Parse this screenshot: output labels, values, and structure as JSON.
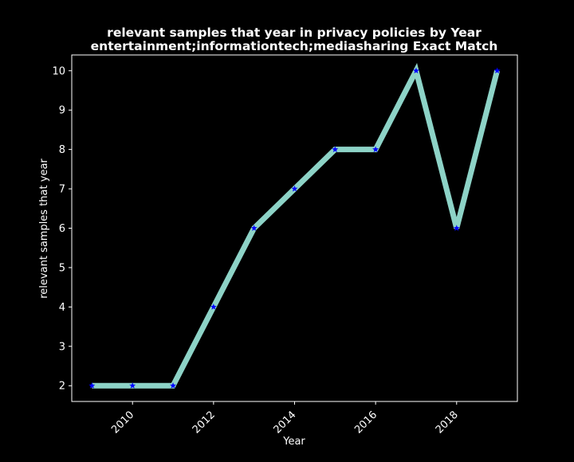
{
  "chart_data": {
    "type": "line",
    "title_line1": "relevant samples that year in privacy policies by Year",
    "title_line2": "entertainment;informationtech;mediasharing Exact Match",
    "xlabel": "Year",
    "ylabel": "relevant samples that year",
    "x": [
      2009,
      2010,
      2011,
      2012,
      2013,
      2014,
      2015,
      2016,
      2017,
      2018,
      2019
    ],
    "series": [
      {
        "values": [
          2,
          2,
          2,
          4,
          6,
          7,
          8,
          8,
          10,
          6,
          10
        ],
        "line_color": "#8dd3c7",
        "marker_color": "#0000ff",
        "marker": "star"
      }
    ],
    "xlim": [
      2008.5,
      2019.5
    ],
    "ylim": [
      1.6,
      10.4
    ],
    "xticks": [
      2010,
      2012,
      2014,
      2016,
      2018
    ],
    "yticks": [
      2,
      3,
      4,
      5,
      6,
      7,
      8,
      9,
      10
    ],
    "grid": false,
    "background": "#000000",
    "foreground": "#ffffff"
  }
}
